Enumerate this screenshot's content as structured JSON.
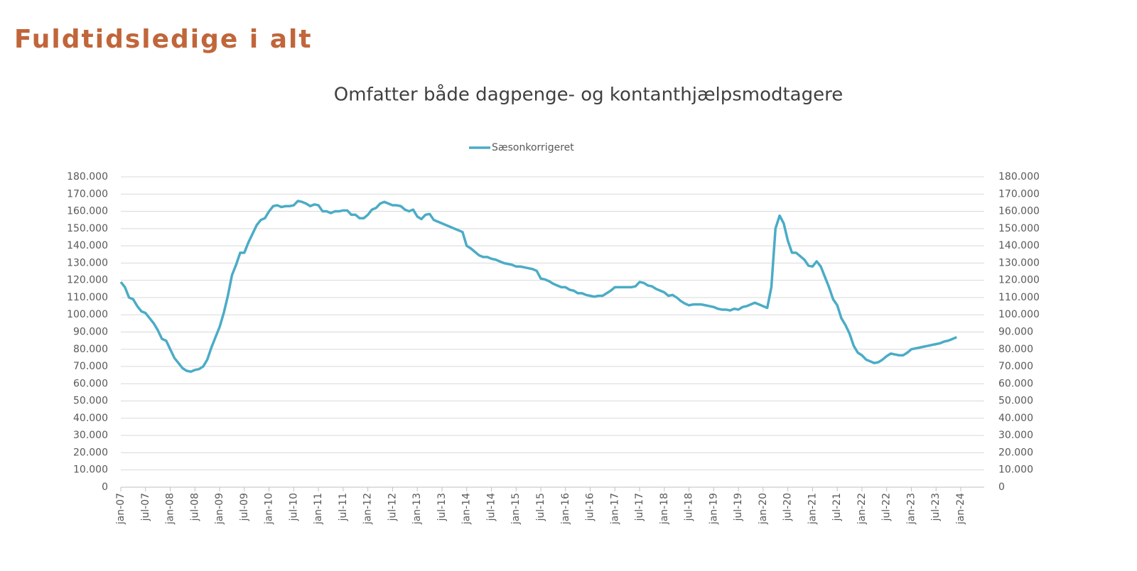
{
  "heading": "Fuldtidsledige i alt",
  "chart_data": {
    "type": "line",
    "title": "Omfatter både dagpenge- og kontanthjælpsmodtagere",
    "categories": [
      "jan-07",
      null,
      null,
      null,
      null,
      null,
      "jul-07",
      null,
      null,
      null,
      null,
      null,
      "jan-08",
      null,
      null,
      null,
      null,
      null,
      "jul-08",
      null,
      null,
      null,
      null,
      null,
      "jan-09",
      null,
      null,
      null,
      null,
      null,
      "jul-09",
      null,
      null,
      null,
      null,
      null,
      "jan-10",
      null,
      null,
      null,
      null,
      null,
      "jul-10",
      null,
      null,
      null,
      null,
      null,
      "jan-11",
      null,
      null,
      null,
      null,
      null,
      "jul-11",
      null,
      null,
      null,
      null,
      null,
      "jan-12",
      null,
      null,
      null,
      null,
      null,
      "jul-12",
      null,
      null,
      null,
      null,
      null,
      "jan-13",
      null,
      null,
      null,
      null,
      null,
      "jul-13",
      null,
      null,
      null,
      null,
      null,
      "jan-14",
      null,
      null,
      null,
      null,
      null,
      "jul-14",
      null,
      null,
      null,
      null,
      null,
      "jan-15",
      null,
      null,
      null,
      null,
      null,
      "jul-15",
      null,
      null,
      null,
      null,
      null,
      "jan-16",
      null,
      null,
      null,
      null,
      null,
      "jul-16",
      null,
      null,
      null,
      null,
      null,
      "jan-17",
      null,
      null,
      null,
      null,
      null,
      "jul-17",
      null,
      null,
      null,
      null,
      null,
      "jan-18",
      null,
      null,
      null,
      null,
      null,
      "jul-18",
      null,
      null,
      null,
      null,
      null,
      "jan-19",
      null,
      null,
      null,
      null,
      null,
      "jul-19",
      null,
      null,
      null,
      null,
      null,
      "jan-20",
      null,
      null,
      null,
      null,
      null,
      "jul-20",
      null,
      null,
      null,
      null,
      null,
      "jan-21",
      null,
      null,
      null,
      null,
      null,
      "jul-21",
      null,
      null,
      null,
      null,
      null,
      "jan-22",
      null,
      null,
      null,
      null,
      null,
      "jul-22",
      null,
      null,
      null,
      null,
      null,
      "jan-23",
      null,
      null,
      null,
      null,
      null,
      "jul-23",
      null,
      null,
      null,
      null,
      null,
      "jan-24"
    ],
    "series": [
      {
        "name": "Sæsonkorrigeret",
        "color": "#4bacc6",
        "values": [
          119000,
          116000,
          110000,
          109000,
          105000,
          102000,
          101000,
          98000,
          95000,
          91000,
          86000,
          85000,
          80000,
          75000,
          72000,
          69000,
          67500,
          67000,
          68000,
          68500,
          70000,
          74000,
          81000,
          87000,
          93000,
          101000,
          111000,
          123000,
          129000,
          136000,
          136000,
          142000,
          147000,
          152000,
          155000,
          156000,
          160000,
          163000,
          163500,
          162500,
          163000,
          163000,
          163500,
          166000,
          165500,
          164500,
          163000,
          164000,
          163500,
          160000,
          160000,
          159000,
          160000,
          160000,
          160500,
          160500,
          158000,
          158000,
          156000,
          156000,
          158000,
          161000,
          162000,
          164500,
          165500,
          164500,
          163500,
          163500,
          163000,
          161000,
          160000,
          161000,
          157000,
          155500,
          158000,
          158500,
          155000,
          154000,
          153000,
          152000,
          151000,
          150000,
          149000,
          148000,
          140000,
          138500,
          136500,
          134500,
          133500,
          133500,
          132500,
          132000,
          131000,
          130000,
          129500,
          129000,
          128000,
          128000,
          127500,
          127000,
          126500,
          125500,
          121000,
          120500,
          119500,
          118000,
          117000,
          116000,
          116000,
          114500,
          114000,
          112500,
          112500,
          111500,
          111000,
          110500,
          111000,
          111000,
          112500,
          114000,
          116000,
          116000,
          116000,
          116000,
          116000,
          116500,
          119000,
          118500,
          117000,
          116500,
          115000,
          114000,
          113000,
          111000,
          111500,
          110000,
          108000,
          106500,
          105500,
          106000,
          106000,
          106000,
          105500,
          105000,
          104500,
          103500,
          103000,
          103000,
          102500,
          103500,
          103000,
          104500,
          105000,
          106000,
          107000,
          106000,
          105000,
          104000,
          116000,
          150000,
          157500,
          153000,
          143000,
          136000,
          136000,
          134000,
          132000,
          128500,
          128000,
          131000,
          128000,
          122000,
          116000,
          109000,
          105500,
          98000,
          94000,
          89000,
          82000,
          78000,
          76500,
          74000,
          73000,
          72000,
          72500,
          74000,
          76000,
          77500,
          77000,
          76500,
          76500,
          78000,
          80000,
          80500,
          81000,
          81500,
          82000,
          82500,
          83000,
          83500,
          84500,
          85000,
          86000,
          87000,
          null
        ]
      }
    ],
    "ylim": [
      0,
      180000
    ],
    "yticks": [
      0,
      {
        "value": 10000,
        "label": "10.000"
      },
      {
        "value": 20000,
        "label": "20.000"
      },
      {
        "value": 30000,
        "label": "30.000"
      },
      {
        "value": 40000,
        "label": "40.000"
      },
      {
        "value": 50000,
        "label": "50.000"
      },
      {
        "value": 60000,
        "label": "60.000"
      },
      {
        "value": 70000,
        "label": "70.000"
      },
      {
        "value": 80000,
        "label": "80.000"
      },
      {
        "value": 90000,
        "label": "90.000"
      },
      {
        "value": 100000,
        "label": "100.000"
      },
      {
        "value": 110000,
        "label": "110.000"
      },
      {
        "value": 120000,
        "label": "120.000"
      },
      {
        "value": 130000,
        "label": "130.000"
      },
      {
        "value": 140000,
        "label": "140.000"
      },
      {
        "value": 150000,
        "label": "150.000"
      },
      {
        "value": 160000,
        "label": "160.000"
      },
      {
        "value": 170000,
        "label": "170.000"
      },
      {
        "value": 180000,
        "label": "180.000"
      }
    ],
    "y2lim": [
      0,
      180000
    ],
    "y2ticks": [
      0,
      {
        "value": 10000,
        "label": "10.000"
      },
      {
        "value": 20000,
        "label": "20.000"
      },
      {
        "value": 30000,
        "label": "30.000"
      },
      {
        "value": 40000,
        "label": "40.000"
      },
      {
        "value": 50000,
        "label": "50.000"
      },
      {
        "value": 60000,
        "label": "60.000"
      },
      {
        "value": 70000,
        "label": "70.000"
      },
      {
        "value": 80000,
        "label": "80.000"
      },
      {
        "value": 90000,
        "label": "90.000"
      },
      {
        "value": 100000,
        "label": "100.000"
      },
      {
        "value": 110000,
        "label": "110.000"
      },
      {
        "value": 120000,
        "label": "120.000"
      },
      {
        "value": 130000,
        "label": "130.000"
      },
      {
        "value": 140000,
        "label": "140.000"
      },
      {
        "value": 150000,
        "label": "150.000"
      },
      {
        "value": 160000,
        "label": "160.000"
      },
      {
        "value": 170000,
        "label": "170.000"
      },
      {
        "value": 180000,
        "label": "180.000"
      }
    ],
    "grid": true,
    "legend": "top"
  }
}
